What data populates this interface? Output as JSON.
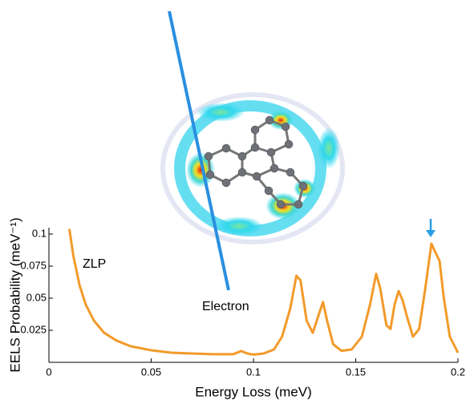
{
  "chart_data": {
    "type": "line",
    "x_label": "Energy Loss (meV)",
    "y_label": "EELS Probability (meV⁻¹)",
    "annotations": [
      "ZLP",
      "Electron"
    ],
    "x": [
      0.01,
      0.012,
      0.015,
      0.018,
      0.022,
      0.027,
      0.033,
      0.04,
      0.05,
      0.06,
      0.07,
      0.08,
      0.09,
      0.094,
      0.097,
      0.1,
      0.105,
      0.11,
      0.114,
      0.118,
      0.121,
      0.123,
      0.126,
      0.129,
      0.132,
      0.134,
      0.136,
      0.139,
      0.143,
      0.148,
      0.153,
      0.157,
      0.16,
      0.162,
      0.165,
      0.167,
      0.169,
      0.171,
      0.173,
      0.175,
      0.178,
      0.181,
      0.184,
      0.187,
      0.189,
      0.191,
      0.193,
      0.196,
      0.2
    ],
    "series": [
      {
        "color": "#f39a2a",
        "values": [
          0.104,
          0.0825,
          0.06,
          0.045,
          0.0325,
          0.023,
          0.017,
          0.0125,
          0.0094,
          0.0075,
          0.0069,
          0.0063,
          0.0063,
          0.0088,
          0.0069,
          0.006,
          0.0069,
          0.01,
          0.02,
          0.042,
          0.0675,
          0.064,
          0.0325,
          0.023,
          0.0375,
          0.047,
          0.0325,
          0.014,
          0.009,
          0.01,
          0.02,
          0.045,
          0.069,
          0.0575,
          0.029,
          0.026,
          0.045,
          0.0556,
          0.048,
          0.036,
          0.02,
          0.026,
          0.0575,
          0.0925,
          0.0856,
          0.079,
          0.051,
          0.02,
          0.0075
        ]
      }
    ],
    "xlim": [
      0,
      0.2
    ],
    "ylim": [
      0,
      0.105
    ],
    "xticks": [
      0,
      0.05,
      0.1,
      0.15,
      0.2
    ],
    "yticks": [
      0.025,
      0.05,
      0.075,
      0.1
    ]
  }
}
